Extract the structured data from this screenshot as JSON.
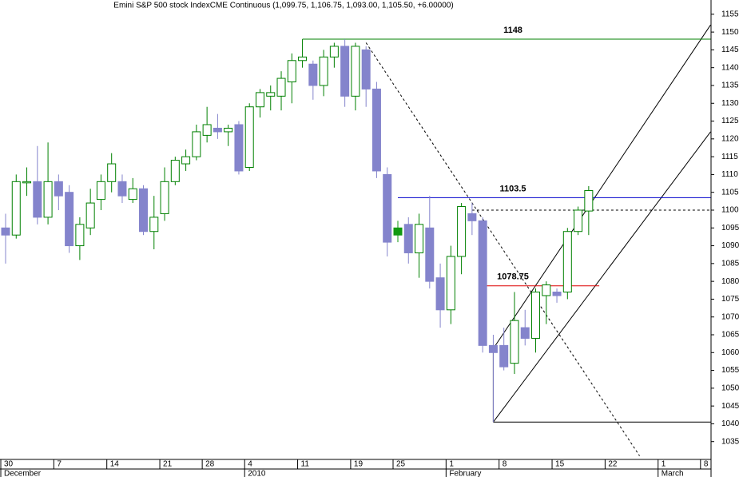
{
  "chart_data": {
    "type": "candlestick",
    "title": "Emini S&P 500 stock IndexCME Continuous (1,099.75, 1,106.75, 1,093.00, 1,105.50, +6.00000)",
    "categories": [
      "30",
      null,
      null,
      null,
      null,
      "7",
      null,
      null,
      null,
      null,
      "14",
      null,
      null,
      null,
      null,
      "21",
      null,
      null,
      null,
      "28",
      null,
      null,
      null,
      "4",
      null,
      null,
      null,
      null,
      "11",
      null,
      null,
      null,
      null,
      "19",
      null,
      null,
      null,
      "25",
      null,
      null,
      null,
      null,
      "1",
      null,
      null,
      null,
      null,
      "8",
      null,
      null,
      null,
      null,
      "15",
      null,
      null,
      null,
      null,
      "22",
      null,
      null,
      null,
      null,
      "1",
      null,
      null,
      null,
      "8"
    ],
    "months": [
      "December",
      null,
      null,
      null,
      null,
      null,
      null,
      null,
      null,
      null,
      null,
      null,
      null,
      null,
      null,
      null,
      null,
      null,
      null,
      null,
      null,
      null,
      null,
      "2010",
      null,
      null,
      null,
      null,
      null,
      null,
      null,
      null,
      null,
      null,
      null,
      null,
      null,
      null,
      null,
      null,
      null,
      null,
      "February",
      null,
      null,
      null,
      null,
      null,
      null,
      null,
      null,
      null,
      null,
      null,
      null,
      null,
      null,
      null,
      null,
      null,
      null,
      null,
      "March",
      null,
      null,
      null,
      null
    ],
    "open": [
      1095,
      1093,
      1108,
      1108,
      1098,
      1108,
      1105,
      1090,
      1095,
      1103,
      1108,
      1108,
      1103,
      1106,
      1094,
      1099,
      1108,
      1113,
      1115,
      1121,
      1123,
      1122,
      1124,
      1112,
      1129,
      1132,
      1132,
      1136,
      1142,
      1141,
      1135,
      1143,
      1146,
      1132,
      1145,
      1134,
      1110,
      1093,
      1096,
      1088,
      1095,
      1081,
      1072,
      1087,
      1099,
      1097,
      1062,
      1062,
      1057,
      1067,
      1064,
      1076,
      1077,
      1077,
      1094,
      1099.75,
      null,
      null,
      null,
      null,
      null,
      null,
      null,
      null,
      null,
      null,
      null
    ],
    "high": [
      1099,
      1110,
      1112,
      1118,
      1119,
      1110,
      1107,
      1098,
      1106,
      1110,
      1116,
      1110,
      1109,
      1107,
      1104,
      1112,
      1115,
      1117,
      1124,
      1129,
      1127,
      1124,
      1125,
      1130,
      1134,
      1135,
      1139,
      1144,
      1148,
      1142,
      1145,
      1147,
      1148,
      1147,
      1146,
      1136,
      1112,
      1097,
      1098,
      1099,
      1104,
      1085,
      1090,
      1102,
      1102,
      1098,
      1065,
      1067,
      1077,
      1072,
      1078,
      1080,
      1078,
      1095,
      1101,
      1106.75,
      null,
      null,
      null,
      null,
      null,
      null,
      null,
      null,
      null,
      null,
      null
    ],
    "low": [
      1085,
      1092,
      1104,
      1096,
      1096,
      1100,
      1088,
      1086,
      1093,
      1100,
      1105,
      1102,
      1102,
      1093,
      1089,
      1097,
      1107,
      1111,
      1114,
      1119,
      1120,
      1118,
      1110,
      1111,
      1126,
      1128,
      1128,
      1130,
      1140,
      1131,
      1132,
      1140,
      1129,
      1128,
      1129,
      1109,
      1087,
      1091,
      1085,
      1081,
      1078,
      1067,
      1068,
      1082,
      1093,
      1060,
      1040.5,
      1055,
      1054,
      1062,
      1060,
      1068,
      1074,
      1075,
      1093,
      1093,
      null,
      null,
      null,
      null,
      null,
      null,
      null,
      null,
      null,
      null,
      null
    ],
    "close": [
      1093,
      1108,
      1108,
      1098,
      1108,
      1104,
      1090,
      1096,
      1102,
      1108,
      1113,
      1104,
      1106,
      1094,
      1098,
      1108,
      1114,
      1115,
      1122,
      1124,
      1122,
      1123,
      1111,
      1129,
      1133,
      1133,
      1137,
      1142,
      1143,
      1135,
      1143,
      1146,
      1132,
      1146,
      1134,
      1111,
      1091,
      1095,
      1088,
      1096,
      1080,
      1072,
      1087,
      1101,
      1097,
      1062,
      1060,
      1056,
      1069,
      1064,
      1077,
      1079,
      1076,
      1094,
      1100,
      1105.5,
      null,
      null,
      null,
      null,
      null,
      null,
      null,
      null,
      null,
      null,
      null
    ],
    "up_color": "#008000",
    "down_color": "#8484cc",
    "highlight_index": 37,
    "highlight_color": "#119911",
    "ylim": [
      1030,
      1159
    ],
    "yticks": [
      1035,
      1040,
      1045,
      1050,
      1055,
      1060,
      1065,
      1070,
      1075,
      1080,
      1085,
      1090,
      1095,
      1100,
      1105,
      1110,
      1115,
      1120,
      1125,
      1130,
      1135,
      1140,
      1145,
      1150,
      1155
    ],
    "levels": [
      {
        "value": 1148,
        "from": 28,
        "to": 66.5,
        "color": "#008000"
      },
      {
        "value": 1103.5,
        "from": 37,
        "to": 66.5,
        "color": "#0000cc"
      },
      {
        "value": 1078.75,
        "from": 45,
        "to": 56,
        "color": "#dd0000"
      }
    ],
    "lines": [
      {
        "from": [
          44,
          1100
        ],
        "to": [
          66.5,
          1100
        ],
        "color": "#000000",
        "dash": true
      },
      {
        "from": [
          46,
          1040.5
        ],
        "to": [
          66.5,
          1040.5
        ],
        "color": "#000000",
        "dash": false
      },
      {
        "from": [
          46,
          1062
        ],
        "to": [
          46,
          1040.5
        ],
        "color": "#000000",
        "dash": false
      },
      {
        "from": [
          46,
          1040.5
        ],
        "to": [
          66.5,
          1122
        ],
        "color": "#000000",
        "dash": false
      },
      {
        "from": [
          46.2,
          1062
        ],
        "to": [
          66.5,
          1152
        ],
        "color": "#000000",
        "dash": false
      },
      {
        "from": [
          34,
          1147
        ],
        "to": [
          59.8,
          1031
        ],
        "color": "#000000",
        "dash": true
      }
    ]
  }
}
